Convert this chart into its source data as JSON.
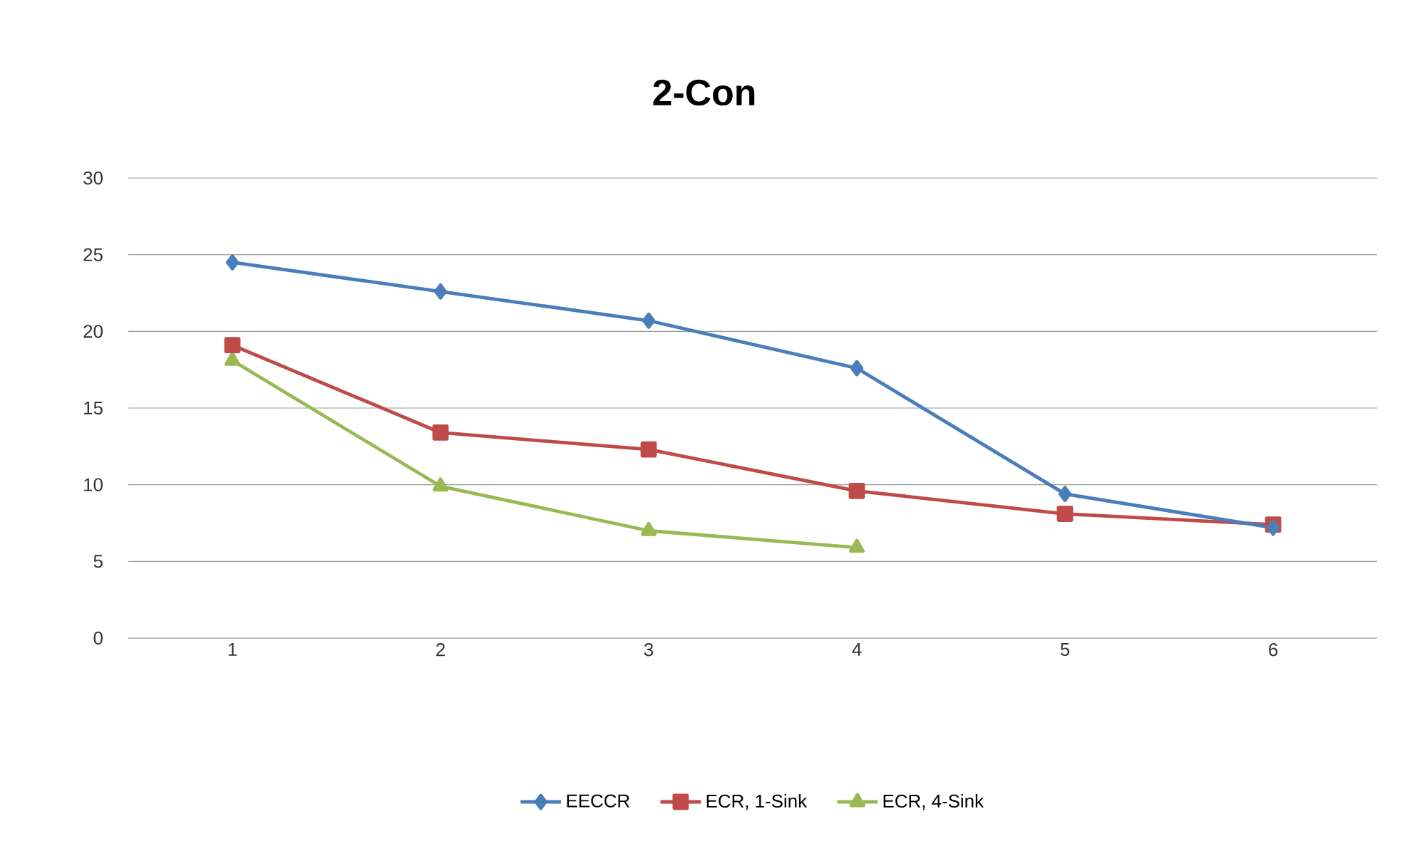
{
  "chart_data": {
    "type": "line",
    "title": "2-Con",
    "categories": [
      "1",
      "2",
      "3",
      "4",
      "5",
      "6"
    ],
    "series": [
      {
        "name": "EECCR",
        "color": "#4a7ebb",
        "marker": "diamond",
        "values": [
          24.5,
          22.6,
          20.7,
          17.6,
          9.4,
          7.2
        ]
      },
      {
        "name": "ECR, 1-Sink",
        "color": "#be4b48",
        "marker": "square",
        "values": [
          19.1,
          13.4,
          12.3,
          9.6,
          8.1,
          7.4
        ]
      },
      {
        "name": "ECR, 4-Sink",
        "color": "#98b954",
        "marker": "triangle",
        "values": [
          18.1,
          9.9,
          7.0,
          5.9,
          null,
          null
        ]
      }
    ],
    "ylim": [
      0,
      30
    ],
    "yticks": [
      0,
      5,
      10,
      15,
      20,
      25,
      30
    ],
    "grid": "y",
    "legend": "bottom"
  }
}
